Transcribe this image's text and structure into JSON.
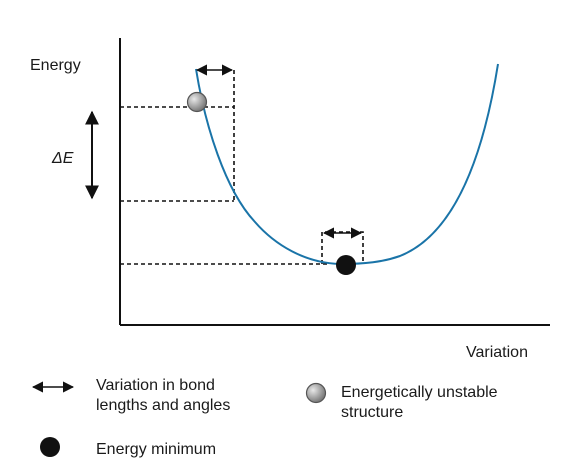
{
  "axes": {
    "y_label": "Energy",
    "x_label": "Variation"
  },
  "delta_label": "ΔE",
  "curve_color": "#1a74a8",
  "marker_colors": {
    "minimum": "#111111",
    "unstable_fill": "#9a9a9a",
    "unstable_stroke": "#555555"
  },
  "legend": {
    "bond_variation": "Variation in bond\nlengths and angles",
    "energy_minimum": "Energy minimum",
    "unstable_structure": "Energetically unstable\nstructure"
  }
}
